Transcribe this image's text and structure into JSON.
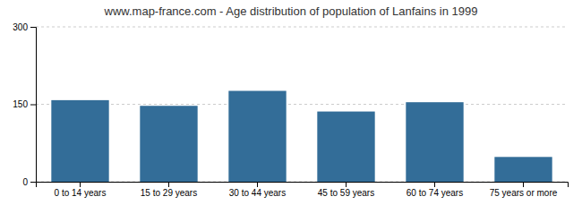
{
  "chart_data": {
    "type": "bar",
    "title": "www.map-france.com - Age distribution of population of Lanfains in 1999",
    "categories": [
      "0 to 14 years",
      "15 to 29 years",
      "30 to 44 years",
      "45 to 59 years",
      "60 to 74 years",
      "75 years or more"
    ],
    "values": [
      158,
      147,
      176,
      136,
      154,
      48
    ],
    "color": "#336d98",
    "ylim": [
      0,
      300
    ],
    "yticks": [
      0,
      150,
      300
    ],
    "grid": true
  }
}
